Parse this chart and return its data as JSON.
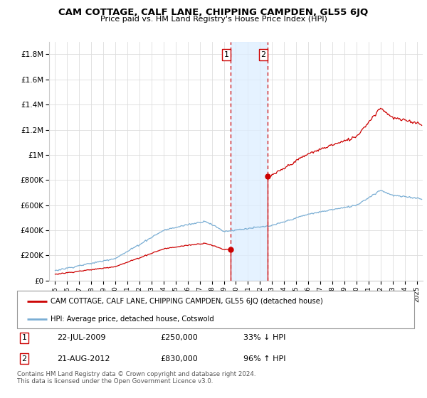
{
  "title": "CAM COTTAGE, CALF LANE, CHIPPING CAMPDEN, GL55 6JQ",
  "subtitle": "Price paid vs. HM Land Registry's House Price Index (HPI)",
  "legend_line1": "CAM COTTAGE, CALF LANE, CHIPPING CAMPDEN, GL55 6JQ (detached house)",
  "legend_line2": "HPI: Average price, detached house, Cotswold",
  "footnote": "Contains HM Land Registry data © Crown copyright and database right 2024.\nThis data is licensed under the Open Government Licence v3.0.",
  "transaction1": {
    "label": "1",
    "date": "22-JUL-2009",
    "price": "£250,000",
    "hpi": "33% ↓ HPI"
  },
  "transaction2": {
    "label": "2",
    "date": "21-AUG-2012",
    "price": "£830,000",
    "hpi": "96% ↑ HPI"
  },
  "t1_x": 2009.55,
  "t2_x": 2012.64,
  "t1_price": 250000,
  "t2_price": 830000,
  "red_line_color": "#cc0000",
  "blue_line_color": "#7aaed4",
  "shaded_color": "#ddeeff",
  "vline_color": "#cc0000",
  "grid_color": "#dddddd",
  "ylim_max": 1900000,
  "xlim_start": 1994.5,
  "xlim_end": 2025.5,
  "yticks": [
    0,
    200000,
    400000,
    600000,
    800000,
    1000000,
    1200000,
    1400000,
    1600000,
    1800000
  ],
  "ytick_labels": [
    "£0",
    "£200K",
    "£400K",
    "£600K",
    "£800K",
    "£1M",
    "£1.2M",
    "£1.4M",
    "£1.6M",
    "£1.8M"
  ],
  "xticks": [
    1995,
    1996,
    1997,
    1998,
    1999,
    2000,
    2001,
    2002,
    2003,
    2004,
    2005,
    2006,
    2007,
    2008,
    2009,
    2010,
    2011,
    2012,
    2013,
    2014,
    2015,
    2016,
    2017,
    2018,
    2019,
    2020,
    2021,
    2022,
    2023,
    2024,
    2025
  ]
}
